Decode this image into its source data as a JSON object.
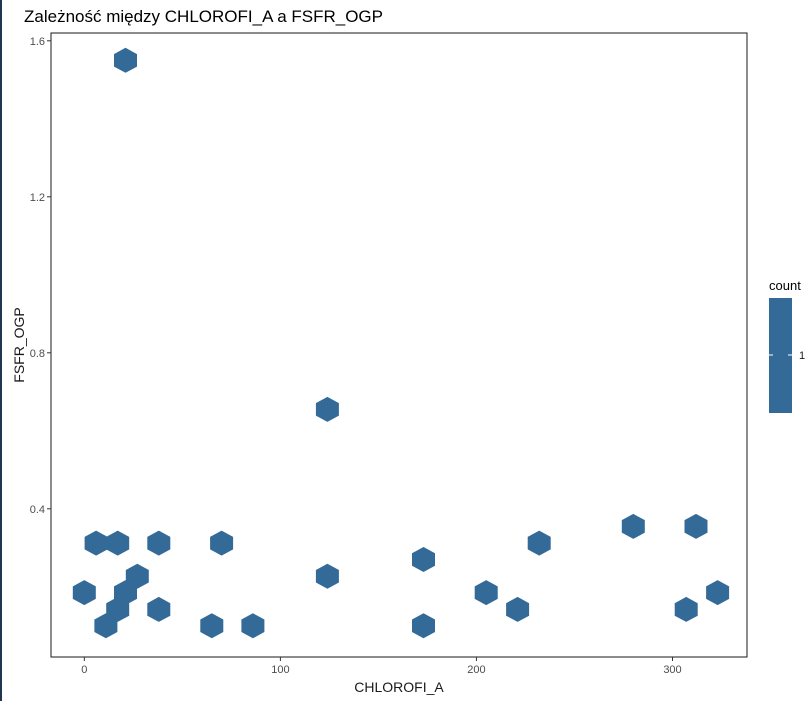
{
  "chart_data": {
    "type": "hexbin",
    "title": "Zależność między CHLOROFI_A a FSFR_OGP",
    "xlabel": "CHLOROFI_A",
    "ylabel": "FSFR_OGP",
    "xlim": [
      -17,
      338
    ],
    "ylim": [
      0.02,
      1.62
    ],
    "xticks": [
      0,
      100,
      200,
      300
    ],
    "yticks": [
      0.4,
      0.8,
      1.2,
      1.6
    ],
    "grid": false,
    "fill_color": "#336a98",
    "legend": {
      "title": "count",
      "values": [
        1
      ],
      "placement": "right"
    },
    "points": [
      {
        "x": 21,
        "y": 1.55
      },
      {
        "x": 124,
        "y": 0.655
      },
      {
        "x": 280,
        "y": 0.355
      },
      {
        "x": 312,
        "y": 0.355
      },
      {
        "x": 6,
        "y": 0.312
      },
      {
        "x": 17,
        "y": 0.312
      },
      {
        "x": 38,
        "y": 0.312
      },
      {
        "x": 70,
        "y": 0.312
      },
      {
        "x": 232,
        "y": 0.312
      },
      {
        "x": 173,
        "y": 0.27
      },
      {
        "x": 27,
        "y": 0.227
      },
      {
        "x": 124,
        "y": 0.227
      },
      {
        "x": 0,
        "y": 0.185
      },
      {
        "x": 21,
        "y": 0.185
      },
      {
        "x": 205,
        "y": 0.185
      },
      {
        "x": 323,
        "y": 0.185
      },
      {
        "x": 17,
        "y": 0.142
      },
      {
        "x": 38,
        "y": 0.142
      },
      {
        "x": 221,
        "y": 0.142
      },
      {
        "x": 307,
        "y": 0.142
      },
      {
        "x": 11,
        "y": 0.1
      },
      {
        "x": 65,
        "y": 0.1
      },
      {
        "x": 86,
        "y": 0.1
      },
      {
        "x": 173,
        "y": 0.1
      }
    ]
  }
}
